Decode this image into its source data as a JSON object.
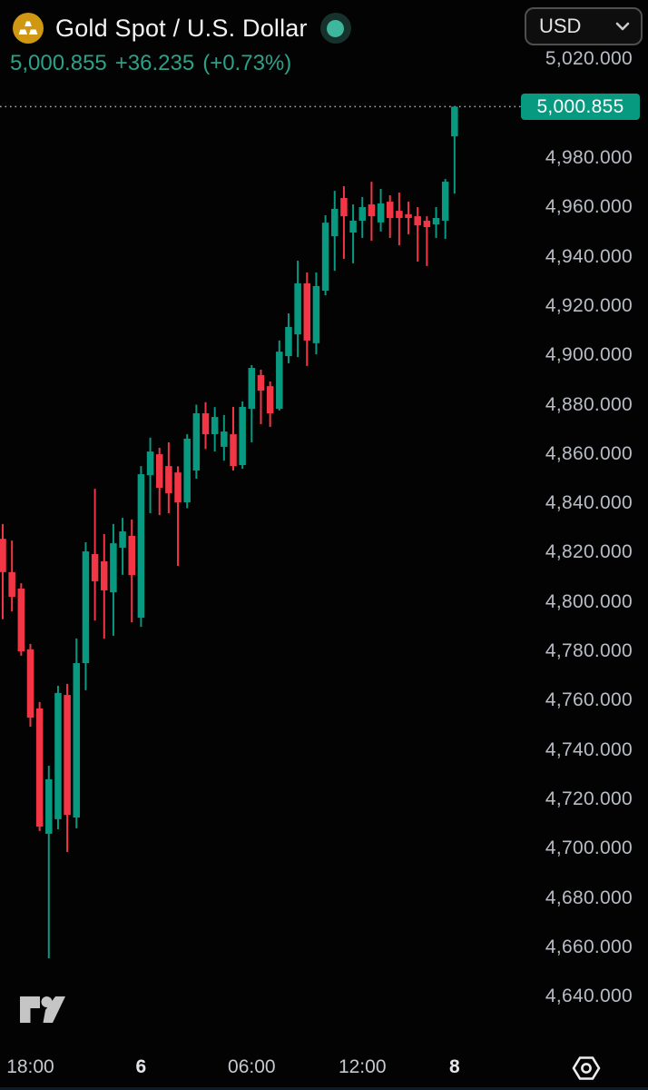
{
  "header": {
    "symbol_title": "Gold Spot / U.S. Dollar",
    "last_price": "5,000.855",
    "change": "+36.235",
    "change_percent": "(+0.73%)",
    "currency_selector_value": "USD",
    "market_status": "open"
  },
  "icons": {
    "instrument": "gold-ingots-icon",
    "status": "market-status-dot-icon",
    "currency_chevron": "chevron-down-icon",
    "settings": "settings-hexagon-icon",
    "logo": "tradingview-logo-icon"
  },
  "price_axis": {
    "last_price_label": "5,000.855",
    "ticks": [
      "5,020.000",
      "4,980.000",
      "4,960.000",
      "4,940.000",
      "4,920.000",
      "4,900.000",
      "4,880.000",
      "4,860.000",
      "4,840.000",
      "4,820.000",
      "4,800.000",
      "4,780.000",
      "4,760.000",
      "4,740.000",
      "4,720.000",
      "4,700.000",
      "4,680.000",
      "4,660.000",
      "4,640.000"
    ]
  },
  "time_axis": {
    "labels": [
      {
        "text": "18:00",
        "index": 3,
        "bold": false
      },
      {
        "text": "6",
        "index": 15,
        "bold": true
      },
      {
        "text": "06:00",
        "index": 27,
        "bold": false
      },
      {
        "text": "12:00",
        "index": 39,
        "bold": false
      },
      {
        "text": "8",
        "index": 49,
        "bold": true
      }
    ]
  },
  "colors": {
    "background": "#030303",
    "up": "#089981",
    "down": "#f23645",
    "header_change_text": "#2aa28a",
    "axis_text": "#b9bdc5",
    "last_price_bg": "#089981",
    "last_price_text": "#ffffff",
    "price_line_dots": "#a8adb5",
    "gold_icon_bg": "#cf9712",
    "status_dot": "#3eb79c",
    "status_halo": "#17312c"
  },
  "chart_data": {
    "type": "candlestick",
    "title": "Gold Spot / U.S. Dollar",
    "currency": "USD",
    "interval_minutes": 30,
    "last_price": 5000.855,
    "change": 36.235,
    "change_percent": 0.73,
    "y_axis": {
      "tick_min": 4640,
      "tick_max": 5020,
      "tick_step": 20,
      "grid": false,
      "position": "right"
    },
    "x_axis": {
      "labels": [
        {
          "index": 3,
          "text": "18:00"
        },
        {
          "index": 15,
          "text": "6"
        },
        {
          "index": 27,
          "text": "06:00"
        },
        {
          "index": 39,
          "text": "12:00"
        },
        {
          "index": 49,
          "text": "8"
        }
      ]
    },
    "price_line": {
      "value": 5000.855,
      "style": "dotted"
    },
    "candles": [
      {
        "o": 4825.6,
        "h": 4831.6,
        "l": 4793.0,
        "c": 4812.1
      },
      {
        "o": 4812.1,
        "h": 4824.9,
        "l": 4796.2,
        "c": 4802.1
      },
      {
        "o": 4805.4,
        "h": 4807.6,
        "l": 4778.2,
        "c": 4780.0
      },
      {
        "o": 4780.8,
        "h": 4783.0,
        "l": 4749.4,
        "c": 4753.1
      },
      {
        "o": 4756.8,
        "h": 4759.4,
        "l": 4707.1,
        "c": 4708.9
      },
      {
        "o": 4706.0,
        "h": 4733.6,
        "l": 4655.5,
        "c": 4728.1
      },
      {
        "o": 4711.9,
        "h": 4766.0,
        "l": 4707.8,
        "c": 4763.1
      },
      {
        "o": 4762.3,
        "h": 4766.8,
        "l": 4698.6,
        "c": 4713.7
      },
      {
        "o": 4712.6,
        "h": 4785.2,
        "l": 4708.2,
        "c": 4775.2
      },
      {
        "o": 4775.2,
        "h": 4824.2,
        "l": 4764.2,
        "c": 4820.5
      },
      {
        "o": 4819.4,
        "h": 4845.9,
        "l": 4792.5,
        "c": 4808.4
      },
      {
        "o": 4816.5,
        "h": 4827.5,
        "l": 4785.1,
        "c": 4804.7
      },
      {
        "o": 4803.9,
        "h": 4831.6,
        "l": 4786.3,
        "c": 4823.8
      },
      {
        "o": 4822.0,
        "h": 4834.1,
        "l": 4811.0,
        "c": 4828.6
      },
      {
        "o": 4826.8,
        "h": 4833.4,
        "l": 4791.8,
        "c": 4810.9
      },
      {
        "o": 4793.6,
        "h": 4855.1,
        "l": 4789.9,
        "c": 4851.8
      },
      {
        "o": 4851.4,
        "h": 4866.6,
        "l": 4836.0,
        "c": 4861.0
      },
      {
        "o": 4859.9,
        "h": 4862.5,
        "l": 4835.2,
        "c": 4846.3
      },
      {
        "o": 4855.1,
        "h": 4864.7,
        "l": 4836.0,
        "c": 4844.1
      },
      {
        "o": 4852.5,
        "h": 4855.0,
        "l": 4814.6,
        "c": 4840.4
      },
      {
        "o": 4840.4,
        "h": 4868.0,
        "l": 4838.0,
        "c": 4866.2
      },
      {
        "o": 4853.3,
        "h": 4880.0,
        "l": 4850.0,
        "c": 4876.5
      },
      {
        "o": 4876.5,
        "h": 4881.0,
        "l": 4862.0,
        "c": 4868.0
      },
      {
        "o": 4868.0,
        "h": 4879.0,
        "l": 4861.0,
        "c": 4875.0
      },
      {
        "o": 4862.9,
        "h": 4875.8,
        "l": 4857.3,
        "c": 4869.1
      },
      {
        "o": 4868.0,
        "h": 4879.1,
        "l": 4853.3,
        "c": 4855.1
      },
      {
        "o": 4855.5,
        "h": 4881.3,
        "l": 4854.0,
        "c": 4879.1
      },
      {
        "o": 4878.3,
        "h": 4896.0,
        "l": 4864.7,
        "c": 4894.9
      },
      {
        "o": 4892.0,
        "h": 4894.2,
        "l": 4872.1,
        "c": 4885.7
      },
      {
        "o": 4887.5,
        "h": 4889.4,
        "l": 4871.0,
        "c": 4876.5
      },
      {
        "o": 4878.3,
        "h": 4906.0,
        "l": 4877.6,
        "c": 4901.5
      },
      {
        "o": 4899.7,
        "h": 4917.0,
        "l": 4896.8,
        "c": 4911.5
      },
      {
        "o": 4908.5,
        "h": 4938.4,
        "l": 4899.3,
        "c": 4929.2
      },
      {
        "o": 4929.2,
        "h": 4933.6,
        "l": 4895.7,
        "c": 4906.0
      },
      {
        "o": 4904.9,
        "h": 4933.6,
        "l": 4900.4,
        "c": 4928.1
      },
      {
        "o": 4926.2,
        "h": 4956.8,
        "l": 4924.4,
        "c": 4953.8
      },
      {
        "o": 4948.3,
        "h": 4966.7,
        "l": 4934.3,
        "c": 4959.4
      },
      {
        "o": 4963.8,
        "h": 4968.6,
        "l": 4939.1,
        "c": 4956.4
      },
      {
        "o": 4949.8,
        "h": 4961.2,
        "l": 4937.3,
        "c": 4954.6
      },
      {
        "o": 4954.6,
        "h": 4964.2,
        "l": 4947.6,
        "c": 4960.1
      },
      {
        "o": 4961.2,
        "h": 4970.4,
        "l": 4946.5,
        "c": 4956.4
      },
      {
        "o": 4953.9,
        "h": 4967.5,
        "l": 4950.2,
        "c": 4961.6
      },
      {
        "o": 4962.3,
        "h": 4964.9,
        "l": 4947.6,
        "c": 4955.7
      },
      {
        "o": 4958.6,
        "h": 4966.0,
        "l": 4944.6,
        "c": 4955.7
      },
      {
        "o": 4957.2,
        "h": 4962.3,
        "l": 4949.1,
        "c": 4955.7
      },
      {
        "o": 4956.4,
        "h": 4960.1,
        "l": 4938.0,
        "c": 4952.7
      },
      {
        "o": 4954.6,
        "h": 4956.4,
        "l": 4936.2,
        "c": 4952.0
      },
      {
        "o": 4953.1,
        "h": 4960.1,
        "l": 4947.6,
        "c": 4955.7
      },
      {
        "o": 4954.6,
        "h": 4971.5,
        "l": 4947.2,
        "c": 4970.4
      },
      {
        "o": 4988.8,
        "h": 5000.9,
        "l": 4965.6,
        "c": 5000.855
      }
    ]
  }
}
